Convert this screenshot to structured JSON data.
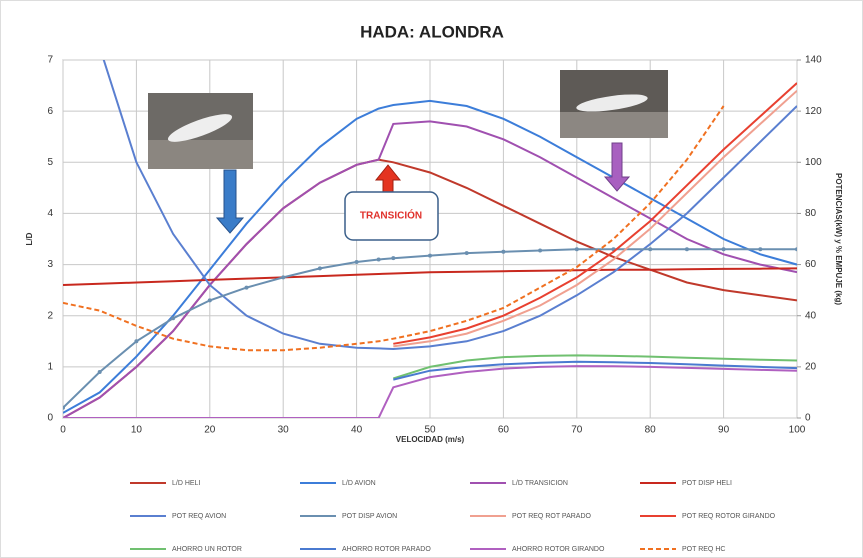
{
  "chart_data": {
    "type": "line",
    "title": "HADA: ALONDRA",
    "x_label": "VELOCIDAD (m/s)",
    "y_label": "L/D",
    "y2_label": "POTENCIAS(kW) y % EMPUJE (kg)",
    "annotation": "TRANSICIÓN",
    "x": [
      0,
      5,
      10,
      15,
      20,
      25,
      30,
      35,
      40,
      43,
      45,
      50,
      55,
      60,
      65,
      70,
      75,
      80,
      85,
      90,
      95,
      100
    ],
    "xlim": [
      0,
      100
    ],
    "xticks": [
      0,
      10,
      20,
      30,
      40,
      50,
      60,
      70,
      80,
      90,
      100
    ],
    "ylim": [
      0,
      7
    ],
    "yticks": [
      0,
      1,
      2,
      3,
      4,
      5,
      6,
      7
    ],
    "y2lim": [
      0,
      140
    ],
    "y2ticks": [
      0,
      20,
      40,
      60,
      80,
      100,
      120,
      140
    ],
    "grid": true,
    "series": [
      {
        "name": "L/D HELI",
        "color": "#c0392b",
        "values": [
          0,
          0.4,
          1.0,
          1.7,
          2.6,
          3.4,
          4.1,
          4.6,
          4.95,
          5.05,
          5.0,
          4.8,
          4.5,
          4.15,
          3.8,
          3.45,
          3.15,
          2.9,
          2.65,
          2.5,
          2.4,
          2.3
        ]
      },
      {
        "name": "L/D AVION",
        "color": "#3c7dd9",
        "values": [
          0.1,
          0.5,
          1.2,
          2.0,
          2.9,
          3.8,
          4.6,
          5.3,
          5.85,
          6.05,
          6.12,
          6.2,
          6.1,
          5.85,
          5.5,
          5.1,
          4.7,
          4.3,
          3.9,
          3.5,
          3.2,
          3.0
        ]
      },
      {
        "name": "L/D TRANSICION",
        "color": "#a050b0",
        "values": [
          0,
          0.4,
          1.0,
          1.7,
          2.6,
          3.4,
          4.1,
          4.6,
          4.95,
          5.05,
          5.75,
          5.8,
          5.7,
          5.45,
          5.1,
          4.7,
          4.3,
          3.9,
          3.5,
          3.2,
          3.0,
          2.85
        ]
      },
      {
        "name": "POT DISP HELI",
        "color": "#c8281e",
        "axis": "y2",
        "values": [
          52,
          52.5,
          53,
          53.5,
          54,
          54.5,
          55,
          55.5,
          56,
          56.3,
          56.5,
          57,
          57.2,
          57.4,
          57.6,
          57.8,
          58,
          58,
          58.2,
          58.3,
          58.4,
          58.5
        ]
      },
      {
        "name": "POT REQ AVION",
        "color": "#5a7fd0",
        "axis": "y2",
        "values": [
          null,
          145,
          100,
          72,
          52,
          40,
          33,
          29,
          27.5,
          27.2,
          27,
          28,
          30,
          34,
          40,
          48,
          57,
          68,
          80,
          94,
          108,
          122
        ]
      },
      {
        "name": "POT DISP AVION",
        "color": "#6a8fb0",
        "axis": "y2",
        "markers": true,
        "values": [
          4,
          18,
          30,
          39,
          46,
          51,
          55,
          58.5,
          61,
          62,
          62.5,
          63.5,
          64.5,
          65,
          65.5,
          66,
          66,
          66,
          66,
          66,
          66,
          66
        ]
      },
      {
        "name": "POT REQ ROT PARADO",
        "color": "#f0a090",
        "axis": "y2",
        "values": [
          null,
          null,
          null,
          null,
          null,
          null,
          null,
          null,
          null,
          null,
          28,
          30,
          33,
          38,
          44,
          52,
          62,
          74,
          88,
          102,
          115,
          128
        ]
      },
      {
        "name": "POT REQ ROTOR GIRANDO",
        "color": "#e84030",
        "axis": "y2",
        "values": [
          null,
          null,
          null,
          null,
          null,
          null,
          null,
          null,
          null,
          null,
          29,
          31.5,
          35,
          40,
          47,
          55,
          65,
          77,
          91,
          105,
          118,
          131
        ]
      },
      {
        "name": "AHORRO UN ROTOR",
        "color": "#70c070",
        "axis": "y2",
        "values": [
          null,
          null,
          null,
          null,
          null,
          null,
          null,
          null,
          null,
          null,
          15.5,
          20,
          22.5,
          23.8,
          24.3,
          24.5,
          24.3,
          24,
          23.6,
          23.2,
          22.8,
          22.5
        ]
      },
      {
        "name": "AHORRO ROTOR PARADO",
        "color": "#4a7ad0",
        "axis": "y2",
        "values": [
          null,
          null,
          null,
          null,
          null,
          null,
          null,
          null,
          null,
          null,
          15,
          18.5,
          20,
          21,
          21.6,
          22,
          21.8,
          21.5,
          21,
          20.5,
          20,
          19.5
        ]
      },
      {
        "name": "AHORRO ROTOR GIRANDO",
        "color": "#b060c0",
        "axis": "y2",
        "values": [
          0,
          0,
          0,
          0,
          0,
          0,
          0,
          0,
          0,
          0,
          12,
          16,
          18,
          19.3,
          20,
          20.3,
          20.2,
          20,
          19.6,
          19.2,
          18.8,
          18.5
        ]
      },
      {
        "name": "POT REQ HC",
        "color": "#f07020",
        "axis": "y2",
        "dashed": true,
        "values": [
          45,
          42,
          36,
          31,
          28,
          26.5,
          26.5,
          27.5,
          29,
          30,
          31,
          34,
          38,
          43,
          51,
          59,
          70,
          84,
          101,
          122,
          null,
          null
        ]
      }
    ]
  }
}
